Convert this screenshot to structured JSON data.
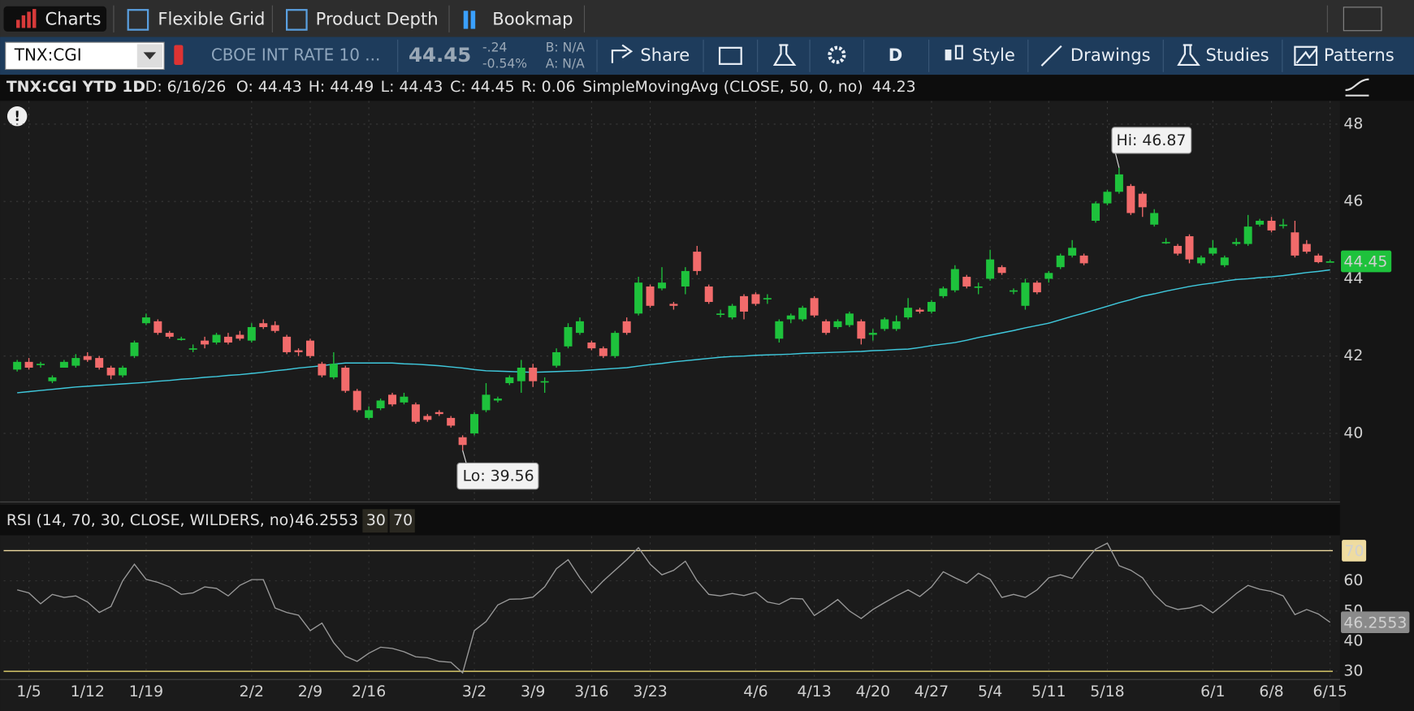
{
  "tabs": [
    "Charts",
    "Flexible Grid",
    "Product Depth",
    "Bookmap"
  ],
  "toolbar": {
    "symbol": "TNX:CGI",
    "description": "CBOE INT RATE 10 ...",
    "last": "44.45",
    "change": "-.24",
    "change_percent": "-0.54%",
    "bid": "B: N/A",
    "ask": "A: N/A",
    "share": "Share",
    "period": "D",
    "style": "Style",
    "drawings": "Drawings",
    "studies": "Studies",
    "patterns": "Patterns"
  },
  "header": {
    "symbol": "TNX:CGI YTD 1D",
    "date": "D: 6/16/26",
    "open": "O: 44.43",
    "high": "H: 44.49",
    "low": "L: 44.43",
    "close": "C: 44.45",
    "range": "R: 0.06"
  },
  "chart_data": [
    {
      "type": "candlestick",
      "categories": [
        null,
        "1/5",
        null,
        null,
        null,
        null,
        "1/12",
        null,
        null,
        null,
        null,
        "1/19",
        null,
        null,
        null,
        null,
        null,
        null,
        null,
        null,
        "2/2",
        null,
        null,
        null,
        null,
        "2/9",
        null,
        null,
        null,
        null,
        "2/16",
        null,
        null,
        null,
        null,
        null,
        null,
        null,
        null,
        "3/2",
        null,
        null,
        null,
        null,
        "3/9",
        null,
        null,
        null,
        null,
        "3/16",
        null,
        null,
        null,
        null,
        "3/23",
        null,
        null,
        null,
        null,
        null,
        null,
        null,
        null,
        "4/6",
        null,
        null,
        null,
        null,
        "4/13",
        null,
        null,
        null,
        null,
        "4/20",
        null,
        null,
        null,
        null,
        "4/27",
        null,
        null,
        null,
        null,
        "5/4",
        null,
        null,
        null,
        null,
        "5/11",
        null,
        null,
        null,
        null,
        "5/18",
        null,
        null,
        null,
        null,
        null,
        null,
        null,
        null,
        "6/1",
        null,
        null,
        null,
        null,
        "6/8",
        null,
        null,
        null,
        null,
        "6/15"
      ],
      "open": [
        41.65,
        41.85,
        41.8,
        41.35,
        41.7,
        41.75,
        42.0,
        41.95,
        41.7,
        41.5,
        42.0,
        42.85,
        42.9,
        42.6,
        42.45,
        42.2,
        42.4,
        42.35,
        42.5,
        42.55,
        42.4,
        42.85,
        42.8,
        42.5,
        42.15,
        42.4,
        41.8,
        41.45,
        41.7,
        41.1,
        40.4,
        40.65,
        41.0,
        40.8,
        40.75,
        40.45,
        40.55,
        40.4,
        39.9,
        40.0,
        40.6,
        40.85,
        41.3,
        41.35,
        41.7,
        41.35,
        41.75,
        42.25,
        42.6,
        42.35,
        42.2,
        42.0,
        42.9,
        43.1,
        43.8,
        43.75,
        43.35,
        43.8,
        44.7,
        43.8,
        43.1,
        43.0,
        43.55,
        43.6,
        43.5,
        42.45,
        42.95,
        42.95,
        43.5,
        42.9,
        42.75,
        42.8,
        42.9,
        42.55,
        42.7,
        42.7,
        43.0,
        43.2,
        43.15,
        43.55,
        43.7,
        44.05,
        43.8,
        44.0,
        44.3,
        43.7,
        43.3,
        43.9,
        44.0,
        44.3,
        44.6,
        44.6,
        45.5,
        45.95,
        46.25,
        46.4,
        46.2,
        45.4,
        44.95,
        44.85,
        45.1,
        44.4,
        44.65,
        44.35,
        44.9,
        44.9,
        45.4,
        45.5,
        45.4,
        45.2,
        44.9,
        44.6,
        44.43
      ],
      "high": [
        41.9,
        41.95,
        41.85,
        41.5,
        41.9,
        42.05,
        42.1,
        42.0,
        41.75,
        41.75,
        42.4,
        43.1,
        42.95,
        42.65,
        42.5,
        42.3,
        42.5,
        42.6,
        42.6,
        42.65,
        42.85,
        42.95,
        42.9,
        42.55,
        42.2,
        42.45,
        41.85,
        42.1,
        41.75,
        41.15,
        40.7,
        40.9,
        41.05,
        41.05,
        40.8,
        40.5,
        40.6,
        40.45,
        39.95,
        40.55,
        41.3,
        40.95,
        41.5,
        41.9,
        41.8,
        41.45,
        42.2,
        42.85,
        43.0,
        42.4,
        42.25,
        42.65,
        43.0,
        44.05,
        43.85,
        44.3,
        43.4,
        44.3,
        44.85,
        43.85,
        43.2,
        43.35,
        43.6,
        43.65,
        43.6,
        42.95,
        43.1,
        43.3,
        43.55,
        42.95,
        42.95,
        43.15,
        42.95,
        42.7,
        43.0,
        43.05,
        43.5,
        43.25,
        43.45,
        43.8,
        44.35,
        44.1,
        43.9,
        44.75,
        44.35,
        43.75,
        44.0,
        43.95,
        44.2,
        44.65,
        45.0,
        44.65,
        46.0,
        46.3,
        46.87,
        46.45,
        46.25,
        45.8,
        45.05,
        44.9,
        45.15,
        44.6,
        45.0,
        44.6,
        45.05,
        45.65,
        45.55,
        45.6,
        45.55,
        45.5,
        45.0,
        44.65,
        44.49
      ],
      "low": [
        41.6,
        41.65,
        41.7,
        41.3,
        41.7,
        41.7,
        41.85,
        41.65,
        41.4,
        41.45,
        41.95,
        42.8,
        42.55,
        42.45,
        42.4,
        42.1,
        42.2,
        42.3,
        42.3,
        42.4,
        42.35,
        42.7,
        42.6,
        42.05,
        42.0,
        41.95,
        41.45,
        41.4,
        41.05,
        40.55,
        40.35,
        40.6,
        40.7,
        40.75,
        40.25,
        40.3,
        40.45,
        40.15,
        39.56,
        39.95,
        40.55,
        40.8,
        41.25,
        41.05,
        41.2,
        41.05,
        41.7,
        42.2,
        42.55,
        42.15,
        41.95,
        41.95,
        42.55,
        43.05,
        43.25,
        43.7,
        43.2,
        43.6,
        44.1,
        43.35,
        43.0,
        42.95,
        42.95,
        43.3,
        43.35,
        42.35,
        42.85,
        42.9,
        43.0,
        42.55,
        42.7,
        42.75,
        42.3,
        42.4,
        42.65,
        42.65,
        42.95,
        43.1,
        43.1,
        43.5,
        43.65,
        43.75,
        43.6,
        43.95,
        44.1,
        43.6,
        43.2,
        43.6,
        43.9,
        44.25,
        44.55,
        44.35,
        45.45,
        45.9,
        46.2,
        45.65,
        45.6,
        45.35,
        44.9,
        44.6,
        44.4,
        44.35,
        44.6,
        44.3,
        44.85,
        44.85,
        45.35,
        45.2,
        45.3,
        44.55,
        44.65,
        44.4,
        44.43
      ],
      "close": [
        41.85,
        41.7,
        41.8,
        41.45,
        41.85,
        41.95,
        41.9,
        41.7,
        41.5,
        41.7,
        42.35,
        43.0,
        42.6,
        42.5,
        42.45,
        42.2,
        42.3,
        42.55,
        42.35,
        42.45,
        42.75,
        42.75,
        42.65,
        42.1,
        42.1,
        42.0,
        41.5,
        41.8,
        41.1,
        40.6,
        40.6,
        40.85,
        40.75,
        40.95,
        40.3,
        40.35,
        40.5,
        40.2,
        39.7,
        40.5,
        41.0,
        40.9,
        41.45,
        41.7,
        41.35,
        41.35,
        42.1,
        42.75,
        42.9,
        42.2,
        42.0,
        42.6,
        42.6,
        43.9,
        43.3,
        43.9,
        43.3,
        44.2,
        44.2,
        43.4,
        43.1,
        43.3,
        43.15,
        43.35,
        43.5,
        42.9,
        43.05,
        43.25,
        43.05,
        42.6,
        42.9,
        43.1,
        42.45,
        42.6,
        42.95,
        42.9,
        43.25,
        43.15,
        43.4,
        43.75,
        44.25,
        43.8,
        43.8,
        44.5,
        44.15,
        43.7,
        43.9,
        43.65,
        44.15,
        44.6,
        44.8,
        44.4,
        45.95,
        46.25,
        46.7,
        45.7,
        45.85,
        45.7,
        44.95,
        44.65,
        44.5,
        44.55,
        44.8,
        44.55,
        44.95,
        45.35,
        45.5,
        45.25,
        45.4,
        44.6,
        44.7,
        44.43,
        44.45
      ],
      "up_color": "#1ec23c",
      "down_color": "#f26b6b",
      "series": [
        {
          "name": "SimpleMovingAvg (CLOSE, 50, 0, no)",
          "color": "#3fc8dc",
          "values": [
            41.05,
            41.08,
            41.11,
            41.14,
            41.17,
            41.2,
            41.22,
            41.24,
            41.26,
            41.28,
            41.3,
            41.32,
            41.35,
            41.37,
            41.4,
            41.42,
            41.45,
            41.47,
            41.5,
            41.52,
            41.55,
            41.58,
            41.62,
            41.65,
            41.69,
            41.72,
            41.75,
            41.79,
            41.82,
            41.82,
            41.82,
            41.82,
            41.82,
            41.8,
            41.79,
            41.77,
            41.75,
            41.72,
            41.69,
            41.65,
            41.62,
            41.61,
            41.6,
            41.59,
            41.58,
            41.59,
            41.6,
            41.61,
            41.62,
            41.64,
            41.66,
            41.68,
            41.7,
            41.74,
            41.78,
            41.81,
            41.85,
            41.88,
            41.91,
            41.94,
            41.97,
            41.99,
            42.0,
            42.02,
            42.03,
            42.04,
            42.05,
            42.07,
            42.08,
            42.09,
            42.1,
            42.11,
            42.12,
            42.14,
            42.15,
            42.17,
            42.18,
            42.22,
            42.27,
            42.31,
            42.35,
            42.41,
            42.48,
            42.54,
            42.6,
            42.66,
            42.73,
            42.79,
            42.85,
            42.94,
            43.03,
            43.11,
            43.2,
            43.29,
            43.38,
            43.46,
            43.55,
            43.61,
            43.68,
            43.74,
            43.8,
            43.85,
            43.89,
            43.94,
            43.98,
            44.0,
            44.03,
            44.05,
            44.08,
            44.12,
            44.16,
            44.19,
            44.23
          ]
        }
      ],
      "annotations": [
        {
          "text": "Hi: 46.87"
        },
        {
          "text": "Lo: 39.56"
        }
      ],
      "ylim": [
        38.25,
        48.6
      ],
      "yticks": [
        40,
        42,
        44,
        46,
        48
      ],
      "grid": true
    },
    {
      "type": "line",
      "title": "RSI (14, 70, 30, CLOSE, WILDERS, no)",
      "series": [
        {
          "name": "RSI",
          "color": "#9a9a9a",
          "values": [
            57,
            56,
            52.4,
            55.5,
            54.5,
            55,
            53,
            49.5,
            51.5,
            60,
            65.5,
            60.5,
            59.5,
            58,
            55.5,
            56,
            58,
            57.5,
            55,
            58.5,
            60.4,
            60.4,
            51,
            49.5,
            48.6,
            43.5,
            46,
            39.5,
            35,
            33.3,
            36,
            38,
            37.6,
            36.5,
            34.8,
            34.5,
            33.3,
            33,
            29.5,
            43.5,
            46.5,
            52,
            53.9,
            54,
            54.6,
            58,
            64,
            67,
            61,
            56,
            60,
            63.5,
            67,
            71,
            65.5,
            62,
            63.5,
            66.5,
            60,
            55.5,
            55,
            55.8,
            55.1,
            56.2,
            53,
            52.2,
            54.2,
            54,
            48.5,
            51,
            53.8,
            50,
            47.5,
            50.5,
            52.8,
            55,
            57,
            54.8,
            58,
            63,
            61,
            59.2,
            62.5,
            60.5,
            54.5,
            55.5,
            54.5,
            57,
            61,
            62,
            60.8,
            66,
            70.5,
            72.5,
            65,
            63.5,
            61,
            55.5,
            51.8,
            50.5,
            51,
            52,
            49.4,
            52.5,
            55.8,
            58.5,
            57.2,
            56.5,
            55,
            48.8,
            50.5,
            49,
            46.2553
          ]
        }
      ],
      "levels": [
        {
          "value": 30,
          "color": "#d8c86a"
        },
        {
          "value": 70,
          "color": "#efdca0"
        }
      ],
      "ylim": [
        27.9,
        74.8
      ],
      "yticks": [
        30,
        40,
        50,
        60
      ],
      "grid": true
    }
  ]
}
